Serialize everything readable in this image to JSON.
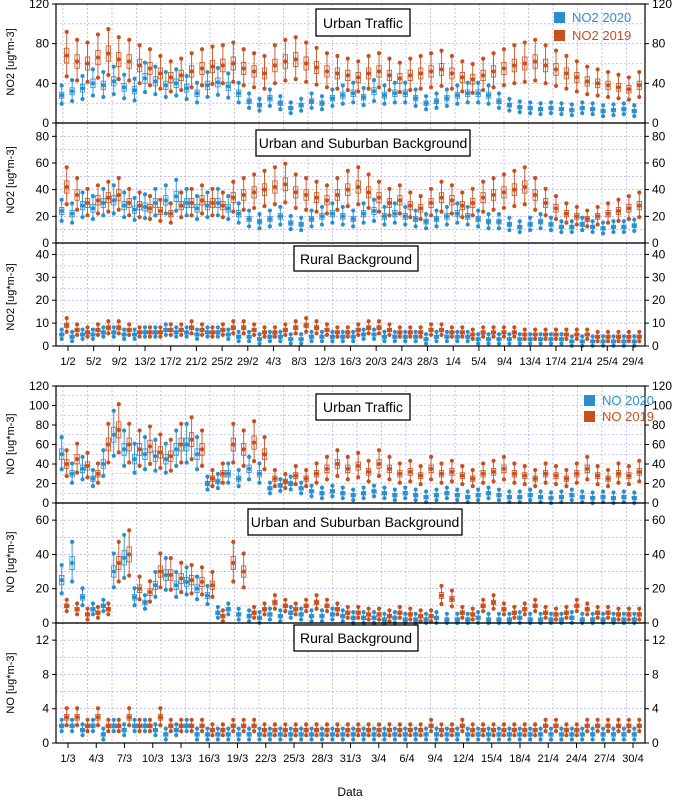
{
  "figure": {
    "xlabel": "Data",
    "colors": {
      "s2020": "#2a8fcf",
      "s2019": "#c8501c",
      "grid": "#9c9cff",
      "frame": "#000000"
    }
  },
  "chart_data": [
    {
      "type": "box",
      "group": "NO2",
      "title": "Urban Traffic",
      "ylabel": "NO2 [ug*m-3]",
      "ylim": [
        0,
        120
      ],
      "yticks": [
        0,
        40,
        80,
        120
      ],
      "legend": [
        "NO2 2020",
        "NO2 2019"
      ],
      "series": [
        {
          "name": "NO2 2020",
          "values": [
            28,
            32,
            35,
            40,
            38,
            42,
            36,
            33,
            45,
            42,
            38,
            40,
            35,
            30,
            38,
            41,
            37,
            30,
            22,
            18,
            25,
            20,
            15,
            18,
            22,
            20,
            25,
            28,
            30,
            26,
            32,
            28,
            30,
            30,
            25,
            20,
            22,
            25,
            28,
            30,
            30,
            28,
            22,
            18,
            16,
            15,
            14,
            15,
            14,
            13,
            15,
            14,
            12,
            13,
            14,
            12
          ]
        },
        {
          "name": "NO2 2019",
          "values": [
            68,
            62,
            60,
            66,
            70,
            64,
            62,
            58,
            55,
            50,
            46,
            48,
            52,
            55,
            57,
            58,
            60,
            55,
            52,
            50,
            58,
            62,
            64,
            60,
            56,
            52,
            50,
            48,
            46,
            50,
            52,
            48,
            45,
            48,
            50,
            52,
            54,
            50,
            46,
            44,
            48,
            52,
            55,
            58,
            60,
            62,
            58,
            54,
            50,
            46,
            42,
            40,
            38,
            36,
            34,
            38
          ]
        }
      ]
    },
    {
      "type": "box",
      "group": "NO2",
      "title": "Urban and Suburban Background",
      "ylabel": "NO2 [ug*m-3]",
      "ylim": [
        0,
        90
      ],
      "yticks": [
        0,
        20,
        40,
        60,
        80
      ],
      "series": [
        {
          "name": "NO2 2020",
          "values": [
            24,
            22,
            28,
            26,
            30,
            32,
            28,
            25,
            27,
            30,
            32,
            35,
            30,
            26,
            28,
            30,
            26,
            22,
            18,
            16,
            18,
            20,
            15,
            14,
            18,
            20,
            22,
            20,
            18,
            22,
            24,
            20,
            22,
            20,
            18,
            16,
            18,
            20,
            22,
            20,
            18,
            16,
            16,
            14,
            12,
            14,
            16,
            14,
            12,
            12,
            14,
            12,
            11,
            12,
            12,
            13
          ]
        },
        {
          "name": "NO2 2019",
          "values": [
            42,
            36,
            30,
            32,
            34,
            36,
            30,
            28,
            26,
            24,
            22,
            28,
            30,
            32,
            30,
            28,
            34,
            36,
            38,
            40,
            42,
            44,
            38,
            36,
            34,
            32,
            36,
            40,
            42,
            38,
            34,
            30,
            32,
            28,
            26,
            30,
            34,
            32,
            28,
            30,
            34,
            36,
            38,
            40,
            42,
            36,
            30,
            26,
            22,
            20,
            18,
            20,
            22,
            24,
            26,
            28
          ]
        }
      ]
    },
    {
      "type": "box",
      "group": "NO2",
      "title": "Rural Background",
      "ylabel": "NO2 [ug*m-3]",
      "ylim": [
        0,
        45
      ],
      "yticks": [
        0,
        10,
        20,
        30,
        40
      ],
      "xticks": [
        "1/2",
        "5/2",
        "9/2",
        "13/2",
        "17/2",
        "21/2",
        "25/2",
        "29/2",
        "4/3",
        "8/3",
        "12/3",
        "16/3",
        "20/3",
        "24/3",
        "28/3",
        "1/4",
        "5/4",
        "9/4",
        "13/4",
        "17/4",
        "21/4",
        "25/4",
        "29/4"
      ],
      "series": [
        {
          "name": "NO2 2020",
          "values": [
            5,
            4,
            5,
            5,
            6,
            6,
            5,
            5,
            6,
            6,
            7,
            6,
            6,
            5,
            6,
            6,
            5,
            4,
            4,
            3,
            4,
            4,
            3,
            3,
            4,
            4,
            4,
            4,
            4,
            5,
            5,
            4,
            4,
            4,
            4,
            3,
            4,
            4,
            4,
            4,
            3,
            3,
            3,
            3,
            3,
            3,
            3,
            3,
            3,
            2,
            2,
            2,
            2,
            2,
            2,
            2
          ]
        },
        {
          "name": "NO2 2019",
          "values": [
            9,
            7,
            6,
            7,
            8,
            8,
            7,
            6,
            6,
            6,
            7,
            7,
            8,
            7,
            6,
            7,
            8,
            8,
            7,
            6,
            6,
            7,
            8,
            9,
            8,
            7,
            6,
            6,
            7,
            8,
            8,
            7,
            6,
            6,
            6,
            7,
            7,
            6,
            6,
            5,
            6,
            6,
            6,
            6,
            5,
            5,
            5,
            5,
            5,
            5,
            5,
            4,
            4,
            4,
            4,
            4
          ]
        }
      ]
    },
    {
      "type": "box",
      "group": "NO",
      "title": "Urban Traffic",
      "ylabel": "NO [ug*m-3]",
      "ylim": [
        0,
        120
      ],
      "yticks": [
        0,
        20,
        40,
        60,
        80,
        100,
        120
      ],
      "legend": [
        "NO 2020",
        "NO 2019"
      ],
      "series": [
        {
          "name": "NO 2020",
          "values": [
            50,
            30,
            35,
            25,
            40,
            70,
            55,
            45,
            50,
            48,
            45,
            55,
            60,
            50,
            20,
            22,
            30,
            25,
            35,
            30,
            15,
            18,
            20,
            15,
            12,
            10,
            12,
            10,
            8,
            10,
            12,
            10,
            8,
            10,
            8,
            6,
            8,
            10,
            8,
            6,
            8,
            10,
            8,
            6,
            6,
            8,
            6,
            5,
            6,
            8,
            6,
            5,
            6,
            5,
            6,
            5
          ]
        },
        {
          "name": "NO 2019",
          "values": [
            40,
            45,
            38,
            30,
            60,
            75,
            60,
            55,
            58,
            52,
            48,
            60,
            65,
            55,
            25,
            30,
            60,
            55,
            62,
            50,
            25,
            22,
            28,
            25,
            30,
            35,
            40,
            35,
            38,
            32,
            40,
            35,
            30,
            32,
            28,
            35,
            30,
            32,
            28,
            25,
            30,
            32,
            35,
            30,
            28,
            25,
            30,
            28,
            25,
            30,
            35,
            28,
            25,
            30,
            28,
            32
          ]
        }
      ]
    },
    {
      "type": "box",
      "group": "NO",
      "title": "Urban and Suburban Background",
      "ylabel": "NO [ug*m-3]",
      "ylim": [
        0,
        70
      ],
      "yticks": [
        0,
        20,
        40,
        60
      ],
      "series": [
        {
          "name": "NO 2020",
          "values": [
            25,
            35,
            15,
            8,
            10,
            30,
            38,
            15,
            12,
            22,
            28,
            22,
            24,
            20,
            16,
            6,
            8,
            5,
            4,
            3,
            5,
            4,
            6,
            5,
            4,
            4,
            5,
            4,
            3,
            3,
            3,
            2,
            3,
            2,
            2,
            2,
            3,
            2,
            2,
            2,
            3,
            2,
            2,
            2,
            3,
            2,
            2,
            2,
            2,
            3,
            2,
            2,
            2,
            2,
            2,
            2
          ]
        },
        {
          "name": "NO 2019",
          "values": [
            10,
            8,
            5,
            6,
            8,
            35,
            40,
            20,
            18,
            30,
            28,
            26,
            25,
            24,
            22,
            4,
            35,
            30,
            6,
            8,
            12,
            10,
            8,
            10,
            12,
            10,
            8,
            6,
            6,
            5,
            5,
            4,
            6,
            5,
            4,
            4,
            16,
            14,
            6,
            5,
            10,
            12,
            8,
            6,
            8,
            10,
            6,
            5,
            6,
            10,
            8,
            6,
            6,
            5,
            5,
            5
          ]
        }
      ]
    },
    {
      "type": "box",
      "group": "NO",
      "title": "Rural Background",
      "ylabel": "NO [ug*m-3]",
      "ylim": [
        0,
        14
      ],
      "yticks": [
        0,
        4,
        8,
        12
      ],
      "xticks": [
        "1/3",
        "4/3",
        "7/3",
        "10/3",
        "13/3",
        "16/3",
        "19/3",
        "22/3",
        "25/3",
        "28/3",
        "31/3",
        "3/4",
        "6/4",
        "9/4",
        "12/4",
        "15/4",
        "18/4",
        "21/4",
        "24/4",
        "27/4",
        "30/4"
      ],
      "series": [
        {
          "name": "NO 2020",
          "values": [
            2,
            2,
            1.5,
            2,
            1,
            2,
            1.5,
            2,
            2,
            1.5,
            1,
            1.5,
            2,
            1,
            1,
            1,
            1,
            1,
            1,
            1,
            1,
            1,
            1,
            1,
            1,
            1,
            1,
            1,
            1,
            1,
            1,
            1,
            1,
            1,
            1,
            1,
            1,
            1,
            1,
            1,
            1,
            1,
            1,
            1,
            1,
            1,
            1,
            1,
            1,
            1,
            1,
            1,
            1,
            1,
            1,
            1
          ]
        },
        {
          "name": "NO 2019",
          "values": [
            3,
            3,
            2,
            3,
            2,
            2,
            3,
            2,
            2,
            3,
            2,
            2,
            2,
            2,
            1.5,
            1.5,
            2,
            2,
            2,
            1.5,
            1.5,
            1.5,
            1.5,
            1.5,
            1.5,
            1.5,
            1.5,
            1.5,
            1.5,
            1.5,
            1.5,
            1.5,
            1.5,
            1.5,
            1.5,
            2,
            1.5,
            1.5,
            2,
            1.5,
            1.5,
            1.5,
            1.5,
            1.5,
            1.5,
            1.5,
            2,
            2,
            1.5,
            1.5,
            2,
            2,
            2,
            2,
            2,
            2
          ]
        }
      ]
    }
  ]
}
